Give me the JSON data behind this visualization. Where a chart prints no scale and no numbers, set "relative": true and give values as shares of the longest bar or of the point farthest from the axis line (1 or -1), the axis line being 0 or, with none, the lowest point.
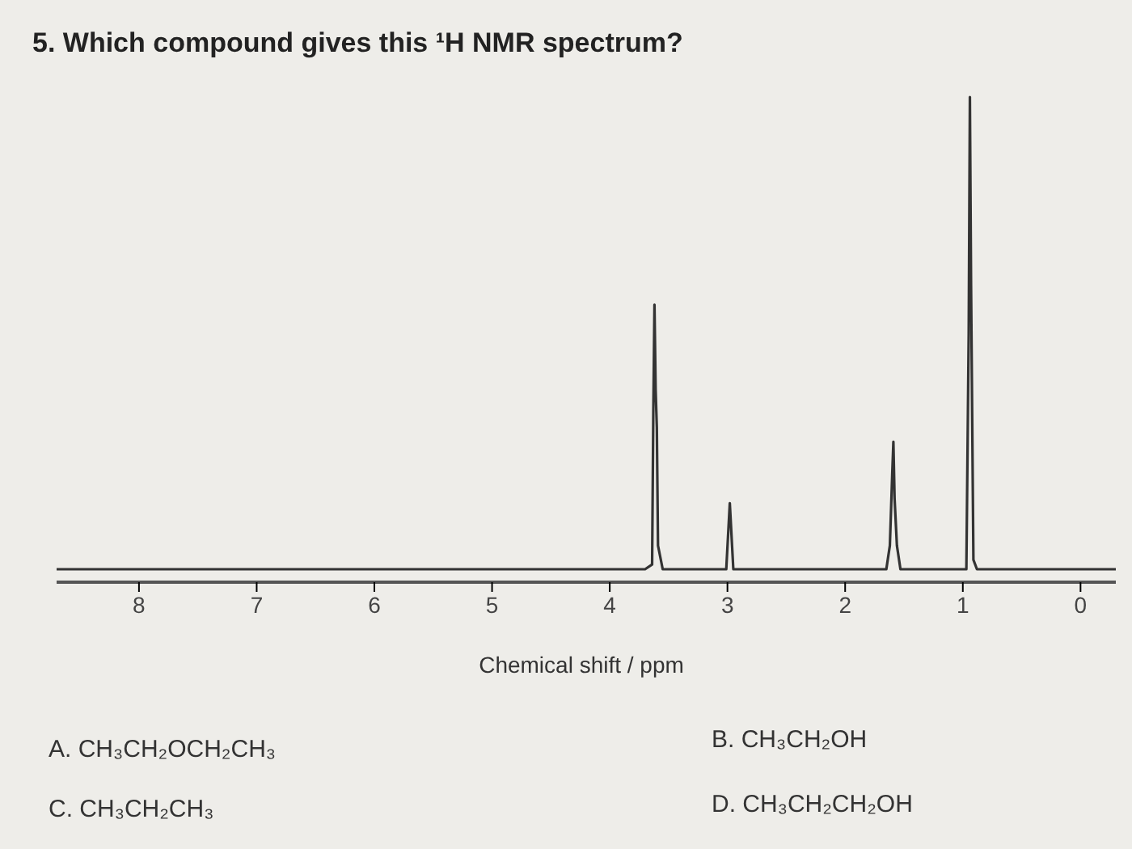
{
  "chart_data": {
    "type": "line",
    "relative": true,
    "title": "5. Which compound gives this ¹H NMR spectrum?",
    "xlabel": "Chemical shift / ppm",
    "x": [
      8.7,
      3.7,
      3.64,
      3.63,
      3.62,
      3.61,
      3.6,
      3.59,
      3.55,
      3.01,
      2.98,
      2.95,
      1.65,
      1.62,
      1.6,
      1.59,
      1.58,
      1.56,
      1.53,
      0.97,
      0.95,
      0.94,
      0.93,
      0.91,
      0.88,
      -0.3
    ],
    "series": [
      {
        "color": "#333333",
        "values": [
          0,
          0,
          0.01,
          0.33,
          0.56,
          0.38,
          0.3,
          0.05,
          0,
          0,
          0.14,
          0,
          0,
          0.05,
          0.2,
          0.27,
          0.15,
          0.05,
          0,
          0,
          0.5,
          1,
          0.6,
          0.02,
          0,
          0
        ]
      }
    ],
    "xlim": [
      8.7,
      -0.3
    ],
    "xticks": [
      8,
      7,
      6,
      5,
      4,
      3,
      2,
      1,
      0
    ],
    "annotations": [
      "A. CH₃CH₂OCH₂CH₃",
      "B. CH₃CH₂OH",
      "C. CH₃CH₂CH₃",
      "D. CH₃CH₂CH₂OH"
    ]
  }
}
